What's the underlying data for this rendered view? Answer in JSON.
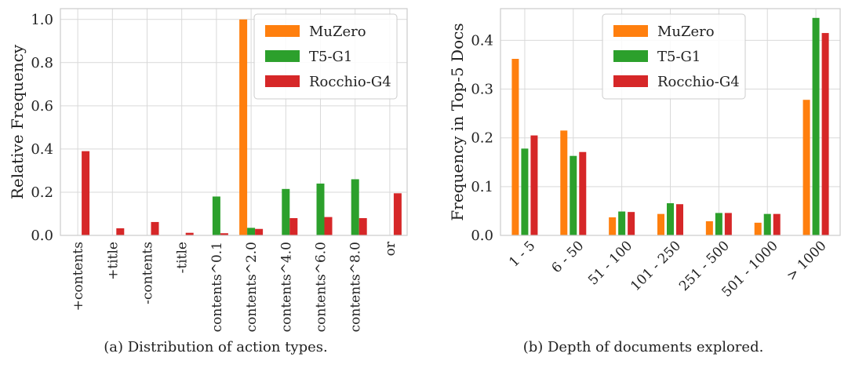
{
  "colors": {
    "MuZero": "#ff7f0e",
    "T5-G1": "#2ca02c",
    "Rocchio-G4": "#d62728",
    "grid": "#d9d9d9",
    "frame": "#cccccc"
  },
  "chart_data": [
    {
      "type": "bar",
      "caption": "(a) Distribution of action types.",
      "xlabel": "",
      "ylabel": "Relative Frequency",
      "ylim": [
        0,
        1.05
      ],
      "yticks": [
        "0.0",
        "0.2",
        "0.4",
        "0.6",
        "0.8",
        "1.0"
      ],
      "categories": [
        "+contents",
        "+title",
        "-contents",
        "-title",
        "contents^0.1",
        "contents^2.0",
        "contents^4.0",
        "contents^6.0",
        "contents^8.0",
        "or"
      ],
      "series": [
        {
          "name": "MuZero",
          "values": [
            0,
            0,
            0,
            0,
            0,
            1.0,
            0,
            0,
            0,
            0
          ]
        },
        {
          "name": "T5-G1",
          "values": [
            0,
            0,
            0,
            0,
            0.18,
            0.035,
            0.215,
            0.24,
            0.26,
            0
          ]
        },
        {
          "name": "Rocchio-G4",
          "values": [
            0.39,
            0.033,
            0.062,
            0.012,
            0.01,
            0.03,
            0.08,
            0.085,
            0.08,
            0.195
          ]
        }
      ],
      "legend": "top-right",
      "grid": true
    },
    {
      "type": "bar",
      "caption": "(b) Depth of documents explored.",
      "xlabel": "",
      "ylabel": "Frequency in Top-5 Docs",
      "ylim": [
        0,
        0.465
      ],
      "yticks": [
        "0.0",
        "0.1",
        "0.2",
        "0.3",
        "0.4"
      ],
      "categories": [
        "1 - 5",
        "6 - 50",
        "51 - 100",
        "101 - 250",
        "251 - 500",
        "501 - 1000",
        "> 1000"
      ],
      "series": [
        {
          "name": "MuZero",
          "values": [
            0.362,
            0.215,
            0.037,
            0.044,
            0.029,
            0.026,
            0.278
          ]
        },
        {
          "name": "T5-G1",
          "values": [
            0.178,
            0.163,
            0.049,
            0.066,
            0.046,
            0.044,
            0.446
          ]
        },
        {
          "name": "Rocchio-G4",
          "values": [
            0.205,
            0.171,
            0.048,
            0.064,
            0.046,
            0.044,
            0.415
          ]
        }
      ],
      "legend": "top-center",
      "grid": true
    }
  ]
}
